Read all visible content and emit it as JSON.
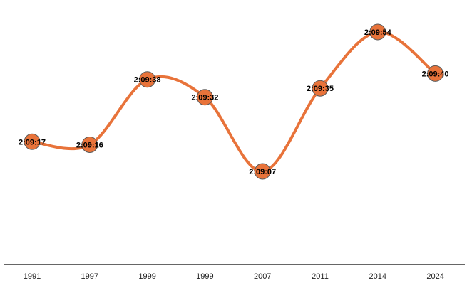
{
  "chart_data": {
    "type": "line",
    "smooth": true,
    "categories": [
      "1991",
      "1997",
      "1999",
      "1999",
      "2007",
      "2011",
      "2014",
      "2024"
    ],
    "series": [
      {
        "labels": [
          "2:09:17",
          "2:09:16",
          "2:09:38",
          "2:09:32",
          "2:09:07",
          "2:09:35",
          "2:09:54",
          "2:09:40"
        ],
        "values_seconds": [
          7757,
          7756,
          7778,
          7772,
          7747,
          7775,
          7794,
          7780
        ]
      }
    ],
    "title": "",
    "xlabel": "",
    "ylabel": "",
    "ylim_seconds": [
      7710,
      7800
    ],
    "y_axis_visible": false,
    "grid": false,
    "legend": "none",
    "colors": {
      "line": "#E8733A",
      "marker_fill": "#E8733A",
      "marker_stroke": "#5A5A5A",
      "axis": "#333333"
    }
  }
}
